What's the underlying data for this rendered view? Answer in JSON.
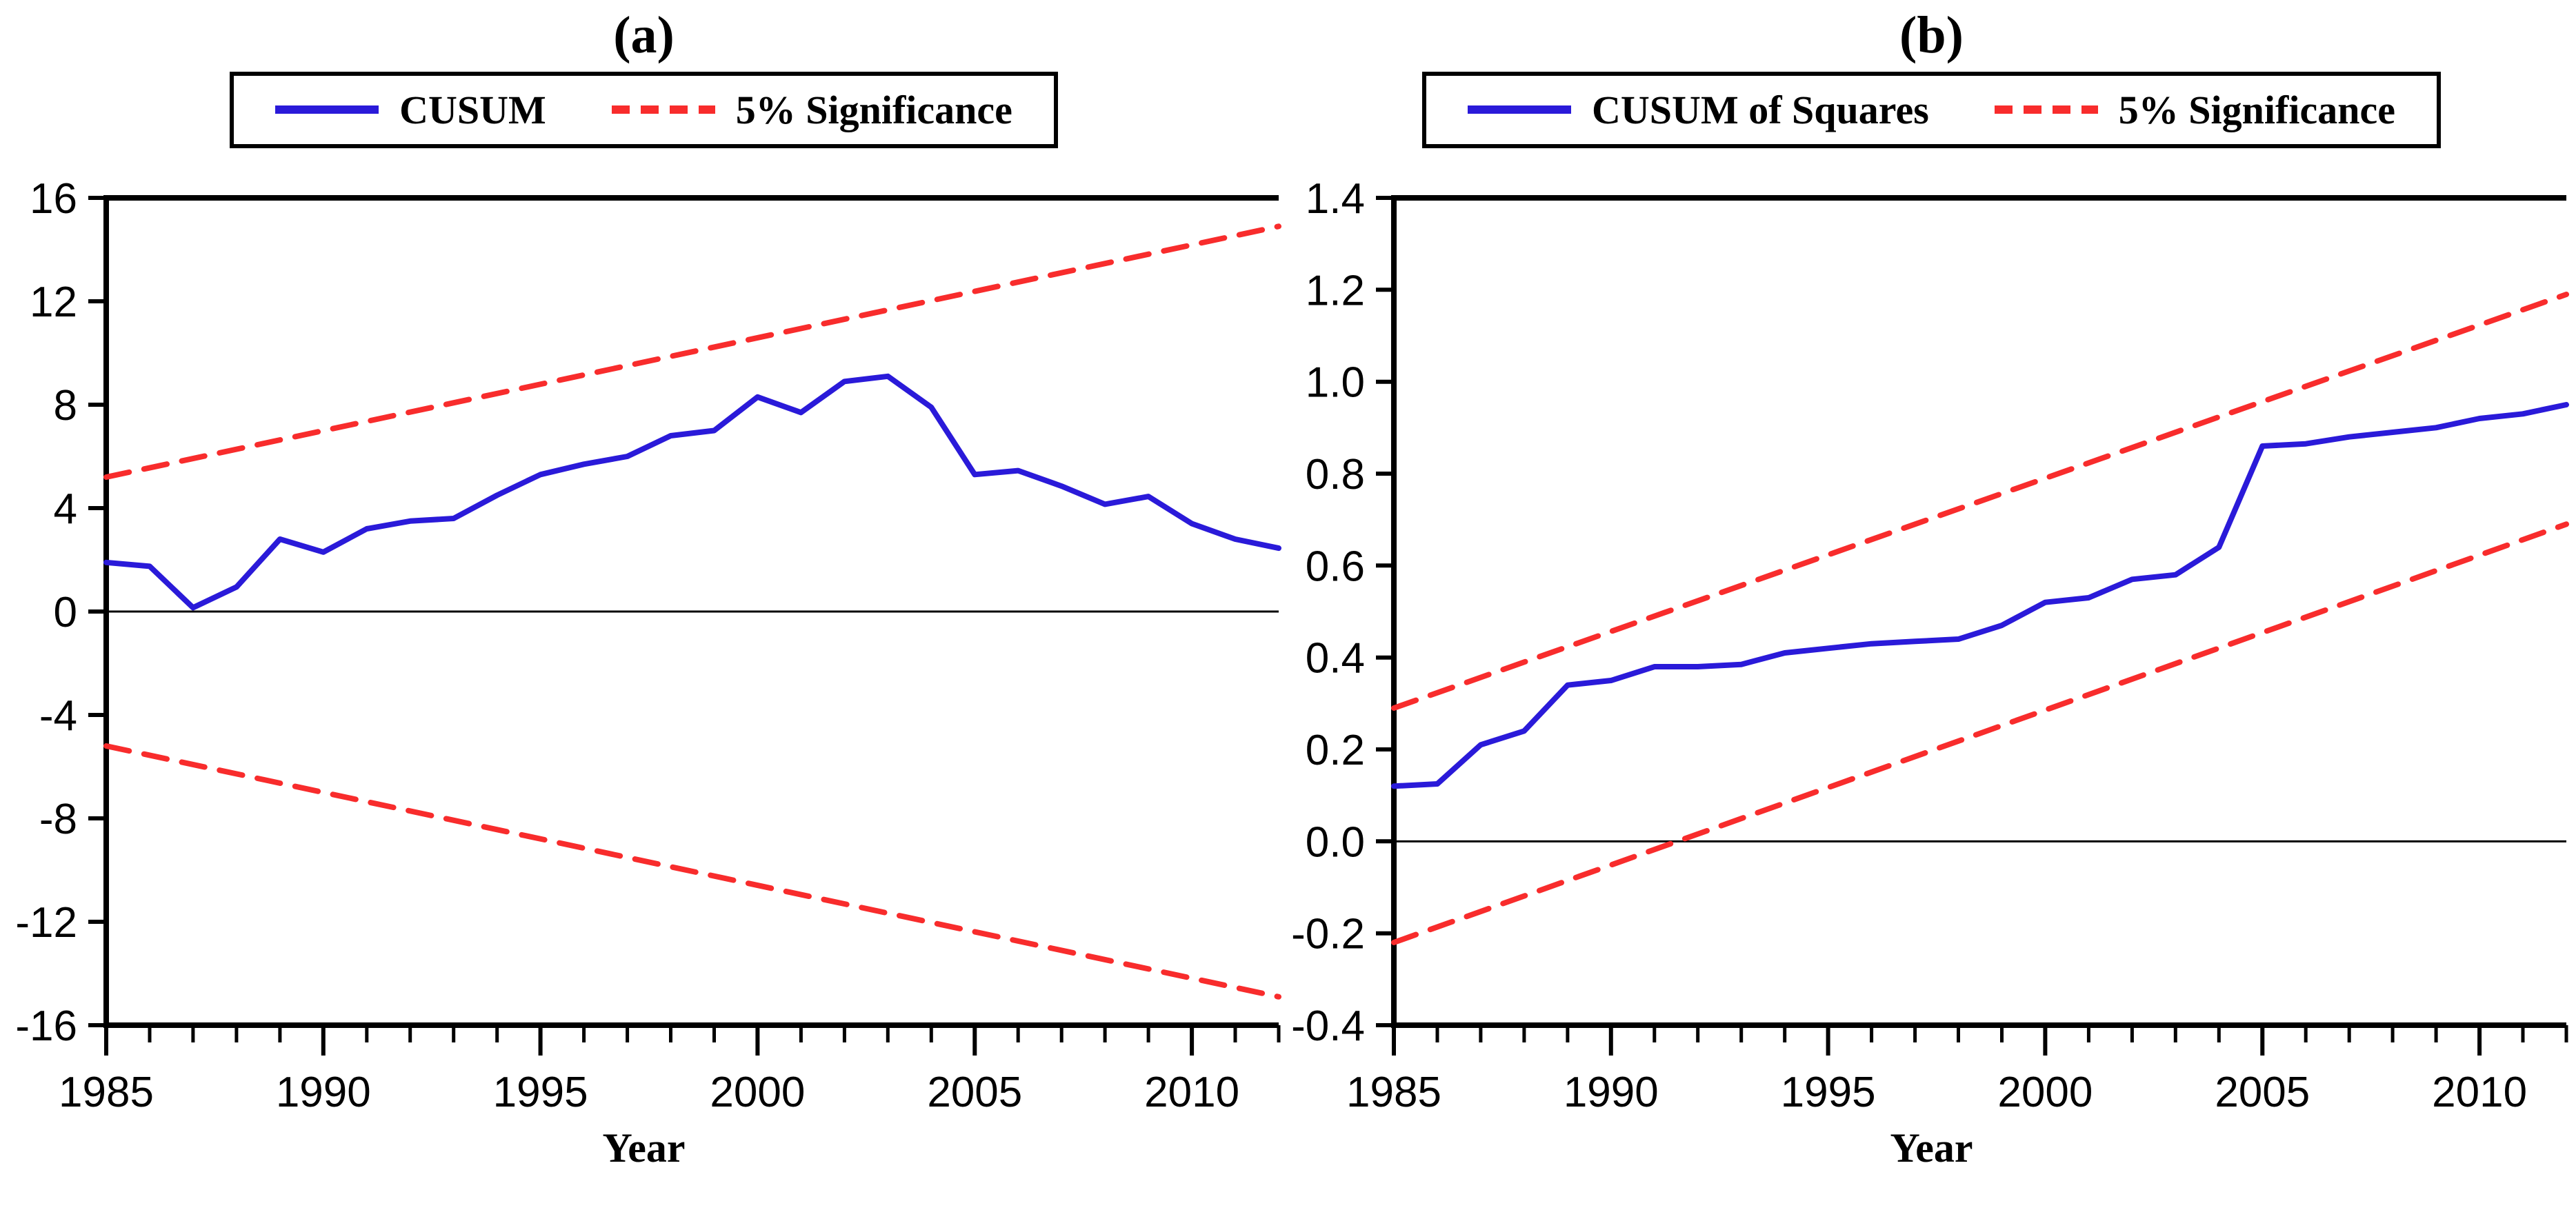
{
  "colors": {
    "background": "#ffffff",
    "axis": "#000000",
    "text": "#000000",
    "cusum_line": "#2a1ad9",
    "significance_line": "#f82c2c"
  },
  "chart_data": [
    {
      "type": "line",
      "title": "(a)",
      "xlabel": "Year",
      "legend_position": "top",
      "grid": false,
      "legend": [
        {
          "label": "CUSUM",
          "swatch": "solid-blue-line"
        },
        {
          "label": "5% Significance",
          "swatch": "dashed-red-line"
        }
      ],
      "xlim": [
        1985,
        2012
      ],
      "ylim": [
        -16,
        16
      ],
      "yticks": [
        16,
        12,
        8,
        4,
        0,
        -4,
        -8,
        -12,
        -16
      ],
      "ytick_labels": [
        "16",
        "12",
        "8",
        "4",
        "0",
        "-4",
        "-8",
        "-12",
        "-16"
      ],
      "xticks_labeled": [
        1985,
        1990,
        1995,
        2000,
        2005,
        2010
      ],
      "xticks_minor_every": 1,
      "zero_line": true,
      "x": [
        1985,
        1986,
        1987,
        1988,
        1989,
        1990,
        1991,
        1992,
        1993,
        1994,
        1995,
        1996,
        1997,
        1998,
        1999,
        2000,
        2001,
        2002,
        2003,
        2004,
        2005,
        2006,
        2007,
        2008,
        2009,
        2010,
        2011,
        2012
      ],
      "series": [
        {
          "name": "CUSUM",
          "color": "#2a1ad9",
          "style": "solid",
          "values": [
            1.9,
            1.75,
            0.15,
            0.95,
            2.8,
            2.3,
            3.2,
            3.5,
            3.6,
            4.5,
            5.3,
            5.7,
            6.0,
            6.8,
            7.0,
            8.3,
            7.7,
            8.9,
            9.1,
            7.9,
            5.3,
            5.45,
            4.85,
            4.15,
            4.45,
            3.4,
            2.8,
            2.45
          ]
        },
        {
          "name": "5% Significance upper",
          "color": "#f82c2c",
          "style": "dashed",
          "x": [
            1985,
            2012
          ],
          "values": [
            5.2,
            14.9
          ]
        },
        {
          "name": "5% Significance lower",
          "color": "#f82c2c",
          "style": "dashed",
          "x": [
            1985,
            2012
          ],
          "values": [
            -5.2,
            -14.9
          ]
        }
      ]
    },
    {
      "type": "line",
      "title": "(b)",
      "xlabel": "Year",
      "legend_position": "top",
      "grid": false,
      "legend": [
        {
          "label": "CUSUM of Squares",
          "swatch": "solid-blue-line"
        },
        {
          "label": "5% Significance",
          "swatch": "dashed-red-line"
        }
      ],
      "xlim": [
        1985,
        2012
      ],
      "ylim": [
        -0.4,
        1.4
      ],
      "yticks": [
        1.4,
        1.2,
        1.0,
        0.8,
        0.6,
        0.4,
        0.2,
        0.0,
        -0.2,
        -0.4
      ],
      "ytick_labels": [
        "1.4",
        "1.2",
        "1.0",
        "0.8",
        "0.6",
        "0.4",
        "0.2",
        "0.0",
        "-0.2",
        "-0.4"
      ],
      "xticks_labeled": [
        1985,
        1990,
        1995,
        2000,
        2005,
        2010
      ],
      "xticks_minor_every": 1,
      "zero_line": true,
      "x": [
        1985,
        1986,
        1987,
        1988,
        1989,
        1990,
        1991,
        1992,
        1993,
        1994,
        1995,
        1996,
        1997,
        1998,
        1999,
        2000,
        2001,
        2002,
        2003,
        2004,
        2005,
        2006,
        2007,
        2008,
        2009,
        2010,
        2011,
        2012
      ],
      "series": [
        {
          "name": "CUSUM of Squares",
          "color": "#2a1ad9",
          "style": "solid",
          "values": [
            0.12,
            0.125,
            0.21,
            0.24,
            0.34,
            0.35,
            0.38,
            0.38,
            0.385,
            0.41,
            0.42,
            0.43,
            0.435,
            0.44,
            0.47,
            0.52,
            0.53,
            0.57,
            0.58,
            0.64,
            0.86,
            0.865,
            0.88,
            0.89,
            0.9,
            0.92,
            0.93,
            0.95
          ]
        },
        {
          "name": "5% Significance upper",
          "color": "#f82c2c",
          "style": "dashed",
          "x": [
            1985,
            2012
          ],
          "values": [
            0.29,
            1.19
          ]
        },
        {
          "name": "5% Significance lower",
          "color": "#f82c2c",
          "style": "dashed",
          "x": [
            1985,
            2012
          ],
          "values": [
            -0.22,
            0.69
          ]
        }
      ]
    }
  ]
}
